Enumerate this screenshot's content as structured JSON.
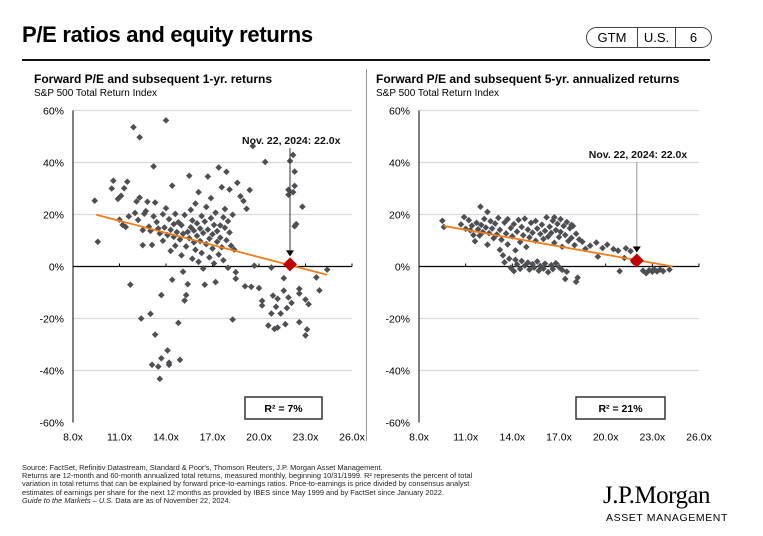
{
  "header": {
    "title": "P/E ratios and equity returns",
    "badge": {
      "section": "GTM",
      "region": "U.S.",
      "page": "6"
    }
  },
  "footer": {
    "source": "Source: FactSet, Refinitiv Datastream, Standard & Poor's, Thomson Reuters, J.P. Morgan Asset Management.",
    "note1": "Returns are 12-month and 60-month annualized total returns, measured monthly, beginning 10/31/1999. R² represents the percent of total",
    "note2": "variation in total returns that can be explained by forward price-to-earnings ratios. Price-to-earnings is price divided by consensus analyst",
    "note3": "estimates of earnings per share for the next 12 months as provided by IBES since May 1999 and by FactSet since January 2022.",
    "guide_italic": "Guide to the Markets – U.S.",
    "guide_rest": " Data are as of November 22, 2024.",
    "logo_main": "J.P.Morgan",
    "logo_sub": "ASSET MANAGEMENT"
  },
  "colors": {
    "points": "#4d4f53",
    "trend": "#f07d1a",
    "current": "#c00000",
    "grid": "#d9d9d9",
    "axis": "#000000"
  },
  "chart_data": [
    {
      "type": "scatter",
      "title": "Forward P/E and subsequent 1-yr. returns",
      "subtitle": "S&P 500 Total Return Index",
      "xlabel": "Forward P/E",
      "ylabel": "Subsequent 1-yr. return",
      "xlim": [
        8,
        26
      ],
      "ylim": [
        -60,
        60
      ],
      "x_ticks": [
        "8.0x",
        "11.0x",
        "14.0x",
        "17.0x",
        "20.0x",
        "23.0x",
        "26.0x"
      ],
      "y_ticks": [
        "60%",
        "40%",
        "20%",
        "0%",
        "-20%",
        "-40%",
        "-60%"
      ],
      "grid": true,
      "annotation": {
        "text": "Nov. 22, 2024: 22.0x",
        "x": 22.0
      },
      "current_point": {
        "x": 22.0,
        "y": 0.8
      },
      "trendline": {
        "x": [
          9.5,
          24.4
        ],
        "y": [
          19.9,
          -3.2
        ]
      },
      "r_squared": "R²  = 7%",
      "points": [
        [
          9.4,
          25.3
        ],
        [
          9.6,
          9.5
        ],
        [
          10.5,
          30.0
        ],
        [
          10.6,
          33.0
        ],
        [
          10.9,
          26.0
        ],
        [
          11.1,
          27.2
        ],
        [
          11.3,
          30.1
        ],
        [
          11.5,
          32.6
        ],
        [
          11.0,
          18.0
        ],
        [
          11.2,
          16.0
        ],
        [
          11.4,
          15.2
        ],
        [
          11.6,
          19.3
        ],
        [
          11.7,
          -7.0
        ],
        [
          11.9,
          53.6
        ],
        [
          12.0,
          20.6
        ],
        [
          12.1,
          25.0
        ],
        [
          12.2,
          17.9
        ],
        [
          12.3,
          49.7
        ],
        [
          12.3,
          26.5
        ],
        [
          12.4,
          -20.0
        ],
        [
          12.5,
          14.0
        ],
        [
          12.5,
          8.2
        ],
        [
          12.6,
          20.3
        ],
        [
          12.7,
          21.3
        ],
        [
          12.8,
          24.9
        ],
        [
          12.9,
          15.3
        ],
        [
          13.0,
          -18.2
        ],
        [
          13.0,
          13.7
        ],
        [
          13.1,
          -37.8
        ],
        [
          13.1,
          8.3
        ],
        [
          13.2,
          38.5
        ],
        [
          13.2,
          19.3
        ],
        [
          13.3,
          -26.2
        ],
        [
          13.3,
          24.6
        ],
        [
          13.4,
          17.1
        ],
        [
          13.5,
          -38.5
        ],
        [
          13.5,
          14.6
        ],
        [
          13.6,
          -43.2
        ],
        [
          13.6,
          12.7
        ],
        [
          13.7,
          -35.3
        ],
        [
          13.7,
          -11.0
        ],
        [
          13.8,
          20.1
        ],
        [
          13.8,
          9.9
        ],
        [
          13.9,
          15.0
        ],
        [
          14.0,
          56.2
        ],
        [
          14.0,
          22.4
        ],
        [
          14.1,
          12.1
        ],
        [
          14.1,
          -32.3
        ],
        [
          14.2,
          -37.0
        ],
        [
          14.2,
          -37.8
        ],
        [
          14.2,
          18.2
        ],
        [
          14.3,
          6.0
        ],
        [
          14.3,
          14.1
        ],
        [
          14.4,
          -5.1
        ],
        [
          14.4,
          31.1
        ],
        [
          14.5,
          11.4
        ],
        [
          14.5,
          16.3
        ],
        [
          14.6,
          20.2
        ],
        [
          14.6,
          8.0
        ],
        [
          14.7,
          13.2
        ],
        [
          14.8,
          -21.7
        ],
        [
          14.8,
          17.0
        ],
        [
          14.9,
          -35.9
        ],
        [
          14.9,
          10.4
        ],
        [
          15.0,
          4.3
        ],
        [
          15.0,
          15.9
        ],
        [
          15.1,
          12.6
        ],
        [
          15.1,
          -2.0
        ],
        [
          15.2,
          -13.1
        ],
        [
          15.2,
          19.8
        ],
        [
          15.3,
          -11.0
        ],
        [
          15.3,
          7.7
        ],
        [
          15.4,
          -6.8
        ],
        [
          15.4,
          13.3
        ],
        [
          15.5,
          34.9
        ],
        [
          15.5,
          10.9
        ],
        [
          15.6,
          21.8
        ],
        [
          15.6,
          15.1
        ],
        [
          15.7,
          3.0
        ],
        [
          15.7,
          17.7
        ],
        [
          15.8,
          9.3
        ],
        [
          15.8,
          13.8
        ],
        [
          15.9,
          24.2
        ],
        [
          15.9,
          6.4
        ],
        [
          16.0,
          11.8
        ],
        [
          16.0,
          16.6
        ],
        [
          16.1,
          28.6
        ],
        [
          16.1,
          1.8
        ],
        [
          16.2,
          14.6
        ],
        [
          16.2,
          9.8
        ],
        [
          16.3,
          19.4
        ],
        [
          16.3,
          5.2
        ],
        [
          16.4,
          12.9
        ],
        [
          16.4,
          -0.8
        ],
        [
          16.5,
          -7.0
        ],
        [
          16.5,
          17.3
        ],
        [
          16.6,
          22.9
        ],
        [
          16.6,
          8.6
        ],
        [
          16.7,
          34.6
        ],
        [
          16.7,
          14.2
        ],
        [
          16.8,
          10.7
        ],
        [
          16.8,
          3.5
        ],
        [
          16.9,
          26.3
        ],
        [
          16.9,
          18.6
        ],
        [
          17.0,
          12.4
        ],
        [
          17.0,
          6.9
        ],
        [
          17.1,
          1.2
        ],
        [
          17.1,
          16.0
        ],
        [
          17.2,
          -6.0
        ],
        [
          17.2,
          20.7
        ],
        [
          17.3,
          9.5
        ],
        [
          17.3,
          13.6
        ],
        [
          17.4,
          38.1
        ],
        [
          17.4,
          4.6
        ],
        [
          17.5,
          15.8
        ],
        [
          17.5,
          11.1
        ],
        [
          17.6,
          30.5
        ],
        [
          17.6,
          7.4
        ],
        [
          17.7,
          18.9
        ],
        [
          17.7,
          2.4
        ],
        [
          17.8,
          14.9
        ],
        [
          17.8,
          22.1
        ],
        [
          17.9,
          10.1
        ],
        [
          17.9,
          36.4
        ],
        [
          18.0,
          -0.5
        ],
        [
          18.0,
          17.4
        ],
        [
          18.1,
          13.1
        ],
        [
          18.1,
          29.6
        ],
        [
          18.2,
          8.0
        ],
        [
          18.3,
          -20.4
        ],
        [
          18.3,
          19.9
        ],
        [
          18.4,
          6.5
        ],
        [
          18.5,
          -2.2
        ],
        [
          18.5,
          -4.7
        ],
        [
          18.6,
          32.2
        ],
        [
          18.8,
          27.0
        ],
        [
          19.0,
          25.2
        ],
        [
          19.1,
          -7.6
        ],
        [
          19.2,
          22.2
        ],
        [
          19.4,
          29.4
        ],
        [
          19.5,
          -7.8
        ],
        [
          19.6,
          46.3
        ],
        [
          19.7,
          0.3
        ],
        [
          20.0,
          -8.3
        ],
        [
          20.2,
          -13.2
        ],
        [
          20.2,
          -15.0
        ],
        [
          20.4,
          40.2
        ],
        [
          20.6,
          -22.7
        ],
        [
          20.8,
          -18.1
        ],
        [
          20.8,
          -0.4
        ],
        [
          20.9,
          -11.2
        ],
        [
          21.0,
          -24.0
        ],
        [
          21.1,
          -15.5
        ],
        [
          21.2,
          -12.4
        ],
        [
          21.2,
          -23.5
        ],
        [
          21.4,
          -18.1
        ],
        [
          21.6,
          -9.3
        ],
        [
          21.6,
          -4.5
        ],
        [
          21.7,
          -22.2
        ],
        [
          21.8,
          -16.0
        ],
        [
          21.9,
          -11.9
        ],
        [
          21.9,
          29.5
        ],
        [
          21.9,
          27.6
        ],
        [
          22.0,
          40.6
        ],
        [
          22.1,
          -14.0
        ],
        [
          22.2,
          42.9
        ],
        [
          22.2,
          28.6
        ],
        [
          22.3,
          36.5
        ],
        [
          22.3,
          31.0
        ],
        [
          22.3,
          15.5
        ],
        [
          22.4,
          16.3
        ],
        [
          22.6,
          -8.6
        ],
        [
          22.6,
          -10.4
        ],
        [
          22.6,
          -21.4
        ],
        [
          22.8,
          23.0
        ],
        [
          23.0,
          -12.7
        ],
        [
          23.0,
          -26.5
        ],
        [
          23.1,
          -24.2
        ],
        [
          23.2,
          -14.5
        ],
        [
          23.7,
          -4.2
        ],
        [
          23.9,
          -9.2
        ],
        [
          24.4,
          -1.2
        ]
      ]
    },
    {
      "type": "scatter",
      "title": "Forward P/E and subsequent 5-yr. annualized returns",
      "subtitle": "S&P 500 Total Return Index",
      "xlabel": "Forward P/E",
      "ylabel": "Subsequent 5-yr. annualized return",
      "xlim": [
        8,
        26
      ],
      "ylim": [
        -60,
        60
      ],
      "x_ticks": [
        "8.0x",
        "11.0x",
        "14.0x",
        "17.0x",
        "20.0x",
        "23.0x",
        "26.0x"
      ],
      "y_ticks": [
        "60%",
        "40%",
        "20%",
        "0%",
        "-20%",
        "-40%",
        "-60%"
      ],
      "grid": true,
      "annotation": {
        "text": "Nov. 22, 2024: 22.0x",
        "x": 22.0
      },
      "current_point": {
        "x": 22.0,
        "y": 2.3
      },
      "trendline": {
        "x": [
          9.6,
          24.3
        ],
        "y": [
          15.6,
          0.0
        ]
      },
      "r_squared": "R²  = 21%",
      "points": [
        [
          9.5,
          17.6
        ],
        [
          9.6,
          15.2
        ],
        [
          10.7,
          16.2
        ],
        [
          10.9,
          19.0
        ],
        [
          11.0,
          14.5
        ],
        [
          11.2,
          17.8
        ],
        [
          11.3,
          13.9
        ],
        [
          11.4,
          15.7
        ],
        [
          11.5,
          12.1
        ],
        [
          11.6,
          9.7
        ],
        [
          11.7,
          16.8
        ],
        [
          11.8,
          14.3
        ],
        [
          11.9,
          11.9
        ],
        [
          11.95,
          23.0
        ],
        [
          12.0,
          16.0
        ],
        [
          12.1,
          13.2
        ],
        [
          12.2,
          18.3
        ],
        [
          12.3,
          15.0
        ],
        [
          12.4,
          21.0
        ],
        [
          12.4,
          8.4
        ],
        [
          12.5,
          12.8
        ],
        [
          12.6,
          17.4
        ],
        [
          12.7,
          14.6
        ],
        [
          12.8,
          10.9
        ],
        [
          12.9,
          16.5
        ],
        [
          13.0,
          12.3
        ],
        [
          13.1,
          18.7
        ],
        [
          13.2,
          6.4
        ],
        [
          13.2,
          14.1
        ],
        [
          13.3,
          10.3
        ],
        [
          13.4,
          4.3
        ],
        [
          13.5,
          16.9
        ],
        [
          13.5,
          1.6
        ],
        [
          13.6,
          12.7
        ],
        [
          13.7,
          8.5
        ],
        [
          13.7,
          18.2
        ],
        [
          13.8,
          3.0
        ],
        [
          13.9,
          14.8
        ],
        [
          13.9,
          -0.5
        ],
        [
          14.0,
          11.6
        ],
        [
          14.1,
          -1.8
        ],
        [
          14.1,
          16.3
        ],
        [
          14.2,
          6.2
        ],
        [
          14.2,
          2.6
        ],
        [
          14.3,
          13.4
        ],
        [
          14.3,
          0.8
        ],
        [
          14.4,
          17.9
        ],
        [
          14.5,
          9.4
        ],
        [
          14.5,
          -0.9
        ],
        [
          14.6,
          15.2
        ],
        [
          14.6,
          2.1
        ],
        [
          14.7,
          12.0
        ],
        [
          14.8,
          0.3
        ],
        [
          14.8,
          18.4
        ],
        [
          14.9,
          7.5
        ],
        [
          15.0,
          1.5
        ],
        [
          15.0,
          14.2
        ],
        [
          15.1,
          -1.2
        ],
        [
          15.1,
          11.2
        ],
        [
          15.2,
          16.8
        ],
        [
          15.3,
          0.9
        ],
        [
          15.3,
          13.0
        ],
        [
          15.4,
          -0.4
        ],
        [
          15.5,
          9.9
        ],
        [
          15.5,
          17.5
        ],
        [
          15.6,
          1.9
        ],
        [
          15.6,
          14.6
        ],
        [
          15.7,
          -1.6
        ],
        [
          15.8,
          12.5
        ],
        [
          15.8,
          0.2
        ],
        [
          15.9,
          16.1
        ],
        [
          16.0,
          10.6
        ],
        [
          16.0,
          -0.8
        ],
        [
          16.1,
          13.7
        ],
        [
          16.1,
          1.1
        ],
        [
          16.2,
          18.9
        ],
        [
          16.3,
          11.5
        ],
        [
          16.3,
          -2.2
        ],
        [
          16.4,
          15.3
        ],
        [
          16.5,
          0.5
        ],
        [
          16.5,
          12.9
        ],
        [
          16.6,
          17.6
        ],
        [
          16.6,
          -1.0
        ],
        [
          16.7,
          18.9
        ],
        [
          16.7,
          9.1
        ],
        [
          16.8,
          14.0
        ],
        [
          16.8,
          1.3
        ],
        [
          16.9,
          16.4
        ],
        [
          17.0,
          11.3
        ],
        [
          17.0,
          -0.2
        ],
        [
          17.1,
          18.2
        ],
        [
          17.1,
          13.3
        ],
        [
          17.2,
          -1.3
        ],
        [
          17.2,
          7.6
        ],
        [
          17.3,
          15.6
        ],
        [
          17.4,
          -4.8
        ],
        [
          17.4,
          12.1
        ],
        [
          17.5,
          17.1
        ],
        [
          17.5,
          -2.0
        ],
        [
          17.6,
          9.8
        ],
        [
          17.7,
          14.7
        ],
        [
          17.8,
          11.0
        ],
        [
          17.8,
          16.0
        ],
        [
          17.9,
          15.6
        ],
        [
          18.0,
          8.2
        ],
        [
          18.1,
          -5.9
        ],
        [
          18.1,
          12.6
        ],
        [
          18.2,
          -4.3
        ],
        [
          18.3,
          10.4
        ],
        [
          18.5,
          9.5
        ],
        [
          18.7,
          6.8
        ],
        [
          19.0,
          8.0
        ],
        [
          19.4,
          9.2
        ],
        [
          19.5,
          3.8
        ],
        [
          19.8,
          7.1
        ],
        [
          20.1,
          8.4
        ],
        [
          20.5,
          6.7
        ],
        [
          20.8,
          6.1
        ],
        [
          20.9,
          -1.8
        ],
        [
          21.2,
          3.3
        ],
        [
          21.3,
          7.0
        ],
        [
          21.6,
          5.9
        ],
        [
          21.8,
          1.7
        ],
        [
          22.4,
          -1.6
        ],
        [
          22.6,
          -2.6
        ],
        [
          22.8,
          -1.4
        ],
        [
          23.0,
          -2.0
        ],
        [
          23.1,
          -1.0
        ],
        [
          23.3,
          -1.9
        ],
        [
          23.5,
          -1.2
        ],
        [
          23.7,
          -1.8
        ],
        [
          24.1,
          -1.2
        ]
      ]
    }
  ]
}
